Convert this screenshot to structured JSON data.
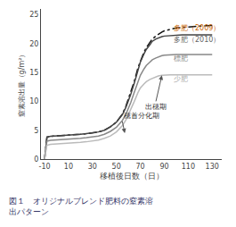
{
  "chart_data": {
    "type": "line",
    "title": "",
    "xlabel": "移植後日数（日）",
    "ylabel": "窒素溶出量（g/m²）",
    "xlim": [
      -13,
      138
    ],
    "ylim": [
      0,
      26
    ],
    "xticks": [
      -10,
      10,
      30,
      50,
      70,
      90,
      110,
      130
    ],
    "yticks": [
      0,
      5,
      10,
      15,
      20,
      25
    ],
    "grid": false,
    "x": [
      -10,
      -8,
      -5,
      0,
      5,
      10,
      15,
      20,
      25,
      30,
      35,
      40,
      45,
      50,
      55,
      58,
      62,
      65,
      68,
      70,
      73,
      75,
      78,
      80,
      83,
      85,
      88,
      90,
      95,
      100,
      105,
      110,
      115,
      120,
      125,
      130
    ],
    "series": [
      {
        "color": "#111111",
        "line_style": "dashdot",
        "values": [
          0,
          3.8,
          3.95,
          4.0,
          4.05,
          4.1,
          4.2,
          4.3,
          4.4,
          4.5,
          4.7,
          5.0,
          5.6,
          6.4,
          7.8,
          9.2,
          11.5,
          13.5,
          15.8,
          17.0,
          18.5,
          19.3,
          20.2,
          20.8,
          21.3,
          21.6,
          22.0,
          22.2,
          22.5,
          22.7,
          22.8,
          22.9,
          23.0,
          23.05,
          23.1,
          23.15
        ]
      },
      {
        "color": "#444444",
        "line_style": "solid",
        "values": [
          0,
          3.8,
          3.95,
          4.0,
          4.05,
          4.1,
          4.2,
          4.3,
          4.4,
          4.5,
          4.7,
          5.0,
          5.6,
          6.4,
          7.7,
          9.0,
          11.2,
          13.2,
          15.5,
          16.8,
          18.2,
          19.0,
          19.8,
          20.4,
          20.8,
          21.0,
          21.2,
          21.3,
          21.4,
          21.45,
          21.5,
          21.5,
          21.5,
          21.5,
          21.5,
          21.5
        ]
      },
      {
        "color": "#888888",
        "line_style": "solid",
        "values": [
          0,
          3.1,
          3.25,
          3.3,
          3.35,
          3.4,
          3.5,
          3.6,
          3.7,
          3.8,
          4.0,
          4.3,
          4.8,
          5.5,
          6.7,
          7.8,
          9.8,
          11.6,
          13.5,
          14.5,
          15.6,
          16.2,
          16.8,
          17.2,
          17.5,
          17.7,
          17.9,
          18.0,
          18.1,
          18.1,
          18.1,
          18.1,
          18.1,
          18.1,
          18.1,
          18.1
        ]
      },
      {
        "color": "#bbbbbb",
        "line_style": "solid",
        "values": [
          0,
          2.4,
          2.55,
          2.6,
          2.65,
          2.7,
          2.8,
          2.9,
          3.0,
          3.1,
          3.3,
          3.6,
          4.0,
          4.7,
          5.8,
          6.8,
          8.5,
          10.0,
          11.5,
          12.3,
          13.0,
          13.4,
          13.8,
          14.0,
          14.3,
          14.4,
          14.5,
          14.55,
          14.6,
          14.6,
          14.6,
          14.6,
          14.6,
          14.6,
          14.6,
          14.6
        ]
      }
    ],
    "labels": [
      {
        "text": "多肥（2009）",
        "x": 96,
        "y": 22.6,
        "color": "#cc6600"
      },
      {
        "text": "多肥（2010）",
        "x": 96,
        "y": 20.7,
        "color": "#666666"
      },
      {
        "text": "標肥",
        "x": 96,
        "y": 17.4,
        "color": "#888888"
      },
      {
        "text": "少肥",
        "x": 96,
        "y": 13.8,
        "color": "#aaaaaa"
      }
    ],
    "annotations": [
      {
        "text": "穂首分化期",
        "text_x": 55,
        "text_y": 6.5,
        "arrow_x": 57,
        "arrow_y": 4.5
      },
      {
        "text": "出穂期",
        "text_x": 83,
        "text_y": 10.0,
        "arrow_x": 88,
        "arrow_y": 14.5
      }
    ],
    "caption": {
      "lines": [
        "図１　オリジナルブレンド肥料の窒素溶",
        "出パターン"
      ],
      "color": "#333366"
    }
  }
}
